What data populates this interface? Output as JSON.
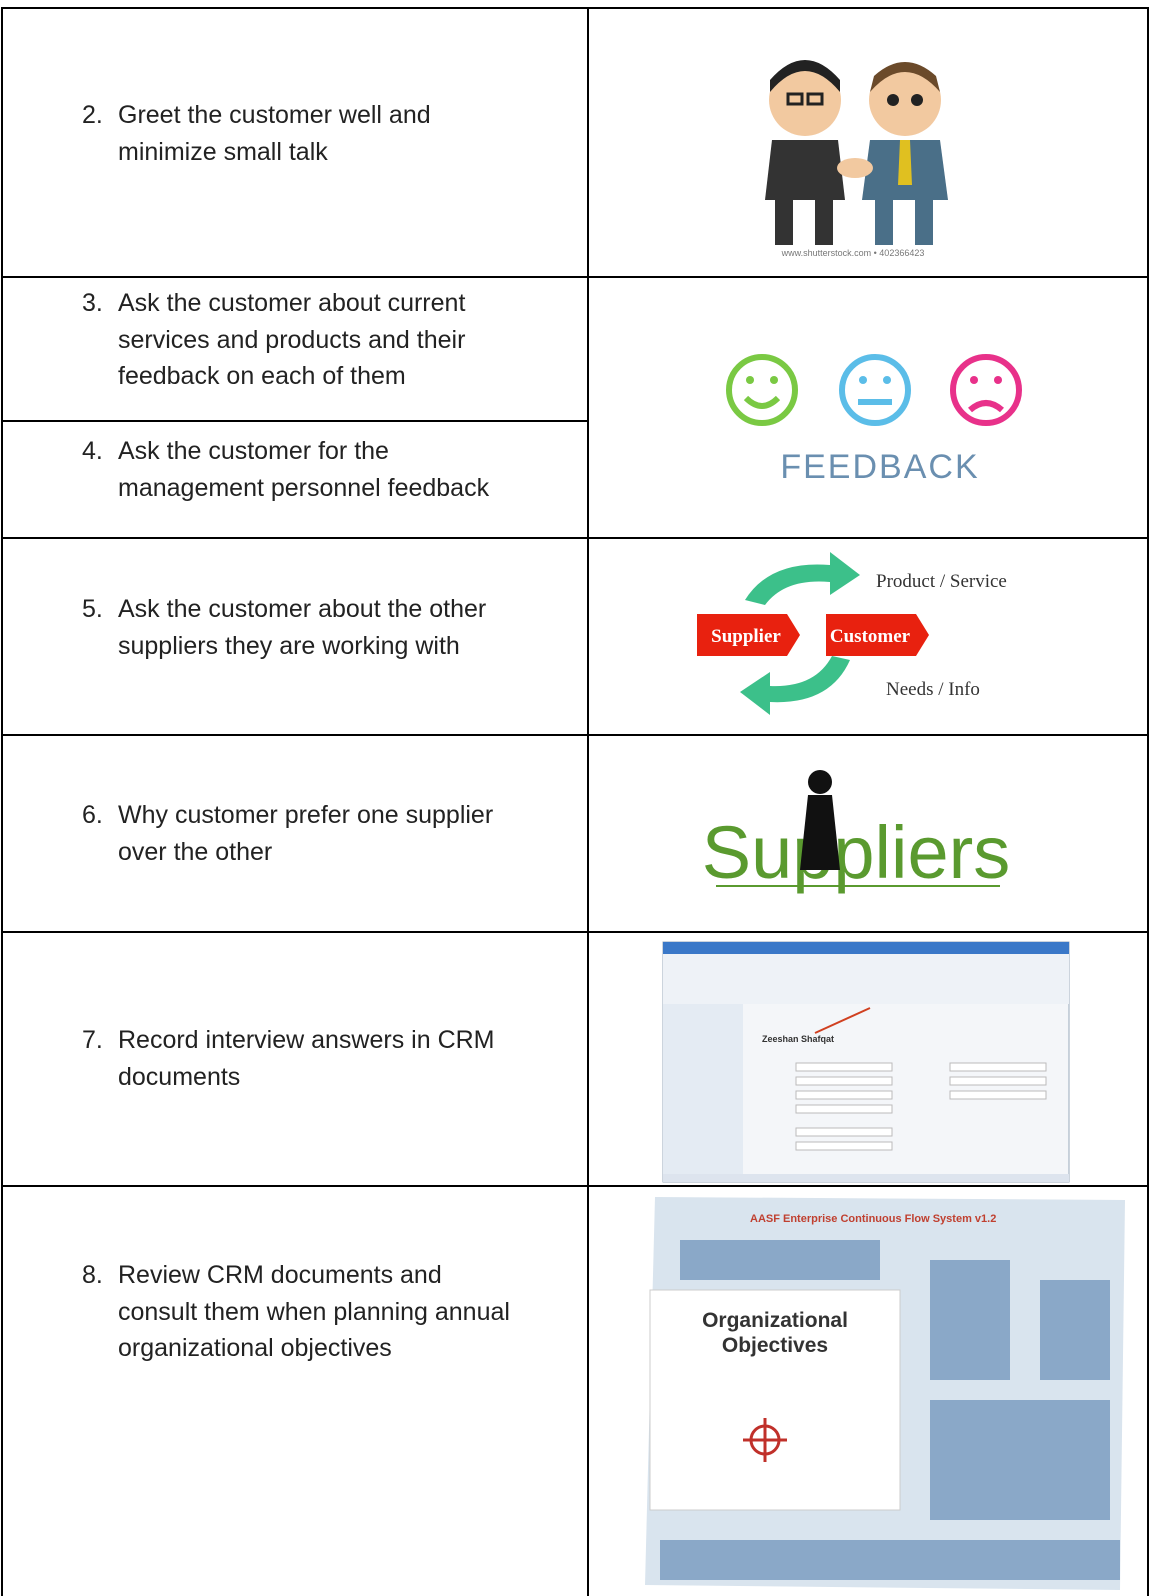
{
  "table": {
    "rows": [
      {
        "number": "2.",
        "lines": [
          "Greet the customer well and",
          "minimize small talk"
        ],
        "image": {
          "caption": "www.shutterstock.com • 402366423"
        }
      },
      {
        "number": "3.",
        "lines": [
          "Ask the customer about current",
          "services and products and their",
          "feedback on each of them"
        ],
        "image": {
          "caption": "FEEDBACK"
        }
      },
      {
        "number": "4.",
        "lines": [
          "Ask the customer for the",
          "management personnel feedback"
        ]
      },
      {
        "number": "5.",
        "lines": [
          "Ask the customer about the other",
          "suppliers they are working with"
        ],
        "image": {
          "top": "Product / Service",
          "left": "Supplier",
          "right": "Customer",
          "bottom": "Needs / Info"
        }
      },
      {
        "number": "6.",
        "lines": [
          "Why customer prefer one supplier",
          "over the other"
        ],
        "image": {
          "caption": "Suppliers"
        }
      },
      {
        "number": "7.",
        "lines": [
          "Record interview answers in CRM",
          "documents"
        ],
        "image": {
          "caption": "Zeeshan Shafqat"
        }
      },
      {
        "number": "8.",
        "lines": [
          "Review CRM documents and",
          "consult them when planning annual",
          "organizational objectives"
        ],
        "image": {
          "title": "AASF Enterprise Continuous Flow System v1.2",
          "caption": [
            "Organizational",
            "Objectives"
          ]
        }
      }
    ]
  }
}
